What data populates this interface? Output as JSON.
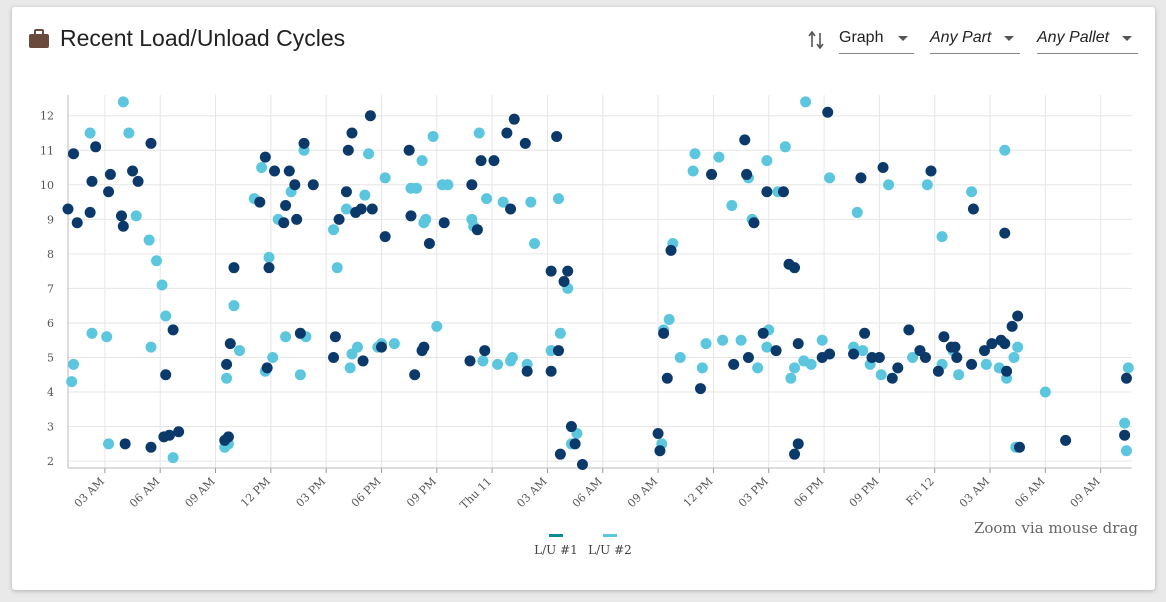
{
  "header": {
    "title": "Recent Load/Unload Cycles",
    "icon": "briefcase-icon",
    "sort_icon": "sort-arrows-icon",
    "view_select": "Graph",
    "part_select": "Any Part",
    "pallet_select": "Any Pallet"
  },
  "zoom_hint": "Zoom via mouse drag",
  "colors": {
    "lu1": "#0b3a6a",
    "lu2": "#5bc6de",
    "grid": "#e6e6e6"
  },
  "chart_data": {
    "type": "scatter",
    "title": "",
    "xlabel": "",
    "ylabel": "",
    "ylim": [
      1.8,
      12.6
    ],
    "yticks": [
      2,
      3,
      4,
      5,
      6,
      7,
      8,
      9,
      10,
      11,
      12
    ],
    "x_unit": "hours since Wed 10 00:00",
    "xlim": [
      1.0,
      58.7
    ],
    "xticks": [
      {
        "x": 3,
        "label": "03 AM"
      },
      {
        "x": 6,
        "label": "06 AM"
      },
      {
        "x": 9,
        "label": "09 AM"
      },
      {
        "x": 12,
        "label": "12 PM"
      },
      {
        "x": 15,
        "label": "03 PM"
      },
      {
        "x": 18,
        "label": "06 PM"
      },
      {
        "x": 21,
        "label": "09 PM"
      },
      {
        "x": 24,
        "label": "Thu 11"
      },
      {
        "x": 27,
        "label": "03 AM"
      },
      {
        "x": 30,
        "label": "06 AM"
      },
      {
        "x": 33,
        "label": "09 AM"
      },
      {
        "x": 36,
        "label": "12 PM"
      },
      {
        "x": 39,
        "label": "03 PM"
      },
      {
        "x": 42,
        "label": "06 PM"
      },
      {
        "x": 45,
        "label": "09 PM"
      },
      {
        "x": 48,
        "label": "Fri 12"
      },
      {
        "x": 51,
        "label": "03 AM"
      },
      {
        "x": 54,
        "label": "06 AM"
      },
      {
        "x": 57,
        "label": "09 AM"
      }
    ],
    "legend_position": "bottom-center",
    "series": [
      {
        "name": "L/U #1",
        "color": "#0b3a6a",
        "points": [
          [
            1.0,
            9.3
          ],
          [
            1.3,
            10.9
          ],
          [
            1.5,
            8.9
          ],
          [
            2.2,
            9.2
          ],
          [
            2.3,
            10.1
          ],
          [
            2.5,
            11.1
          ],
          [
            3.2,
            9.8
          ],
          [
            3.3,
            10.3
          ],
          [
            3.9,
            9.1
          ],
          [
            4.0,
            8.8
          ],
          [
            4.1,
            2.5
          ],
          [
            4.5,
            10.4
          ],
          [
            4.8,
            10.1
          ],
          [
            5.5,
            11.2
          ],
          [
            5.5,
            2.4
          ],
          [
            6.2,
            2.7
          ],
          [
            6.3,
            4.5
          ],
          [
            6.5,
            2.75
          ],
          [
            6.7,
            5.8
          ],
          [
            7.0,
            2.85
          ],
          [
            9.5,
            2.6
          ],
          [
            9.6,
            4.8
          ],
          [
            9.7,
            2.7
          ],
          [
            9.8,
            5.4
          ],
          [
            10.0,
            7.6
          ],
          [
            11.7,
            10.8
          ],
          [
            11.8,
            4.7
          ],
          [
            11.9,
            7.6
          ],
          [
            11.4,
            9.5
          ],
          [
            12.2,
            10.4
          ],
          [
            12.7,
            8.9
          ],
          [
            12.8,
            9.4
          ],
          [
            13.0,
            10.4
          ],
          [
            13.3,
            10.0
          ],
          [
            13.4,
            9.0
          ],
          [
            13.6,
            5.7
          ],
          [
            13.8,
            11.2
          ],
          [
            14.3,
            10.0
          ],
          [
            15.4,
            5.0
          ],
          [
            15.5,
            5.6
          ],
          [
            15.7,
            9.0
          ],
          [
            16.1,
            9.8
          ],
          [
            16.2,
            11.0
          ],
          [
            16.4,
            11.5
          ],
          [
            16.6,
            9.2
          ],
          [
            16.9,
            9.3
          ],
          [
            17.0,
            4.9
          ],
          [
            17.4,
            12.0
          ],
          [
            17.5,
            9.3
          ],
          [
            18.0,
            5.3
          ],
          [
            18.2,
            8.5
          ],
          [
            19.5,
            11.0
          ],
          [
            19.6,
            9.1
          ],
          [
            19.8,
            4.5
          ],
          [
            20.2,
            5.2
          ],
          [
            20.3,
            5.3
          ],
          [
            20.6,
            8.3
          ],
          [
            21.4,
            8.9
          ],
          [
            22.8,
            4.9
          ],
          [
            22.9,
            10.0
          ],
          [
            23.2,
            8.7
          ],
          [
            23.4,
            10.7
          ],
          [
            23.6,
            5.2
          ],
          [
            24.1,
            10.7
          ],
          [
            24.8,
            11.5
          ],
          [
            25.0,
            9.3
          ],
          [
            25.2,
            11.9
          ],
          [
            25.8,
            11.2
          ],
          [
            25.9,
            4.6
          ],
          [
            27.2,
            7.5
          ],
          [
            27.5,
            11.4
          ],
          [
            27.6,
            5.2
          ],
          [
            27.9,
            7.2
          ],
          [
            28.1,
            7.5
          ],
          [
            28.3,
            3.0
          ],
          [
            28.5,
            2.5
          ],
          [
            27.2,
            4.6
          ],
          [
            27.7,
            2.2
          ],
          [
            28.9,
            1.9
          ],
          [
            33.0,
            2.8
          ],
          [
            33.1,
            2.3
          ],
          [
            33.3,
            5.7
          ],
          [
            33.5,
            4.4
          ],
          [
            33.7,
            8.1
          ],
          [
            35.3,
            4.1
          ],
          [
            35.9,
            10.3
          ],
          [
            37.1,
            4.8
          ],
          [
            37.7,
            11.3
          ],
          [
            37.8,
            10.3
          ],
          [
            37.9,
            5.0
          ],
          [
            38.2,
            8.9
          ],
          [
            38.7,
            5.7
          ],
          [
            38.9,
            9.8
          ],
          [
            39.4,
            5.2
          ],
          [
            39.8,
            9.8
          ],
          [
            40.1,
            7.7
          ],
          [
            40.4,
            7.6
          ],
          [
            40.6,
            5.4
          ],
          [
            40.6,
            2.5
          ],
          [
            40.4,
            2.2
          ],
          [
            42.2,
            12.1
          ],
          [
            41.9,
            5.0
          ],
          [
            42.3,
            5.1
          ],
          [
            43.6,
            5.1
          ],
          [
            44.0,
            10.2
          ],
          [
            44.2,
            5.7
          ],
          [
            44.6,
            5.0
          ],
          [
            45.2,
            10.5
          ],
          [
            45.0,
            5.0
          ],
          [
            45.7,
            4.4
          ],
          [
            46.0,
            4.7
          ],
          [
            46.6,
            5.8
          ],
          [
            47.2,
            5.2
          ],
          [
            47.5,
            5.0
          ],
          [
            47.8,
            10.4
          ],
          [
            48.2,
            4.6
          ],
          [
            48.5,
            5.6
          ],
          [
            48.9,
            5.3
          ],
          [
            49.1,
            5.3
          ],
          [
            49.2,
            5.0
          ],
          [
            50.0,
            4.8
          ],
          [
            50.1,
            9.3
          ],
          [
            50.7,
            5.2
          ],
          [
            51.1,
            5.4
          ],
          [
            51.6,
            5.5
          ],
          [
            51.8,
            8.6
          ],
          [
            51.9,
            4.6
          ],
          [
            52.2,
            5.9
          ],
          [
            52.5,
            6.2
          ],
          [
            52.6,
            2.4
          ],
          [
            55.1,
            2.6
          ],
          [
            58.4,
            4.4
          ],
          [
            58.3,
            2.75
          ],
          [
            51.8,
            5.4
          ]
        ]
      },
      {
        "name": "L/U #2",
        "color": "#5bc6de",
        "points": [
          [
            1.2,
            4.3
          ],
          [
            1.3,
            4.8
          ],
          [
            2.2,
            11.5
          ],
          [
            2.3,
            5.7
          ],
          [
            3.1,
            5.6
          ],
          [
            3.2,
            2.5
          ],
          [
            4.0,
            12.4
          ],
          [
            4.3,
            11.5
          ],
          [
            4.7,
            9.1
          ],
          [
            5.4,
            8.4
          ],
          [
            5.5,
            5.3
          ],
          [
            5.8,
            7.8
          ],
          [
            6.1,
            7.1
          ],
          [
            6.3,
            6.2
          ],
          [
            6.7,
            2.1
          ],
          [
            9.5,
            2.4
          ],
          [
            9.6,
            4.4
          ],
          [
            9.7,
            2.5
          ],
          [
            10.0,
            6.5
          ],
          [
            10.3,
            5.2
          ],
          [
            11.1,
            9.6
          ],
          [
            11.5,
            10.5
          ],
          [
            11.7,
            4.6
          ],
          [
            11.9,
            7.9
          ],
          [
            12.1,
            5.0
          ],
          [
            12.4,
            9.0
          ],
          [
            12.8,
            5.6
          ],
          [
            13.1,
            9.8
          ],
          [
            13.6,
            4.5
          ],
          [
            13.8,
            11.0
          ],
          [
            13.9,
            5.6
          ],
          [
            15.4,
            8.7
          ],
          [
            15.6,
            7.6
          ],
          [
            16.1,
            9.3
          ],
          [
            16.3,
            4.7
          ],
          [
            16.4,
            5.1
          ],
          [
            16.7,
            5.3
          ],
          [
            17.1,
            9.7
          ],
          [
            17.3,
            10.9
          ],
          [
            17.8,
            5.3
          ],
          [
            18.0,
            5.4
          ],
          [
            18.2,
            10.2
          ],
          [
            18.7,
            5.4
          ],
          [
            19.6,
            9.9
          ],
          [
            19.9,
            9.9
          ],
          [
            20.2,
            10.7
          ],
          [
            20.3,
            8.9
          ],
          [
            20.4,
            9.0
          ],
          [
            20.8,
            11.4
          ],
          [
            21.0,
            5.9
          ],
          [
            21.3,
            10.0
          ],
          [
            21.6,
            10.0
          ],
          [
            22.9,
            9.0
          ],
          [
            23.0,
            8.8
          ],
          [
            23.3,
            11.5
          ],
          [
            23.5,
            4.9
          ],
          [
            23.7,
            9.6
          ],
          [
            24.3,
            4.8
          ],
          [
            24.6,
            9.5
          ],
          [
            25.0,
            4.9
          ],
          [
            25.1,
            5.0
          ],
          [
            25.9,
            4.8
          ],
          [
            26.1,
            9.5
          ],
          [
            26.3,
            8.3
          ],
          [
            27.2,
            5.2
          ],
          [
            27.6,
            9.6
          ],
          [
            27.7,
            5.7
          ],
          [
            28.1,
            7.0
          ],
          [
            28.3,
            2.5
          ],
          [
            28.6,
            2.8
          ],
          [
            33.2,
            2.5
          ],
          [
            33.3,
            5.8
          ],
          [
            33.6,
            6.1
          ],
          [
            33.8,
            8.3
          ],
          [
            34.2,
            5.0
          ],
          [
            34.9,
            10.4
          ],
          [
            35.0,
            10.9
          ],
          [
            35.4,
            4.7
          ],
          [
            35.6,
            5.4
          ],
          [
            36.3,
            10.8
          ],
          [
            36.5,
            5.5
          ],
          [
            37.0,
            9.4
          ],
          [
            37.5,
            5.5
          ],
          [
            37.9,
            10.2
          ],
          [
            38.1,
            9.0
          ],
          [
            38.4,
            4.7
          ],
          [
            38.9,
            10.7
          ],
          [
            39.0,
            5.8
          ],
          [
            39.5,
            9.8
          ],
          [
            39.9,
            11.1
          ],
          [
            40.2,
            4.4
          ],
          [
            40.4,
            4.7
          ],
          [
            40.9,
            4.9
          ],
          [
            41.0,
            12.4
          ],
          [
            41.3,
            4.8
          ],
          [
            41.9,
            5.5
          ],
          [
            42.3,
            10.2
          ],
          [
            43.6,
            5.3
          ],
          [
            43.8,
            9.2
          ],
          [
            44.5,
            4.8
          ],
          [
            45.1,
            4.5
          ],
          [
            45.5,
            10.0
          ],
          [
            46.8,
            5.0
          ],
          [
            47.6,
            10.0
          ],
          [
            48.4,
            4.8
          ],
          [
            48.4,
            8.5
          ],
          [
            49.0,
            5.2
          ],
          [
            49.3,
            4.5
          ],
          [
            50.0,
            9.8
          ],
          [
            50.8,
            4.8
          ],
          [
            51.5,
            4.7
          ],
          [
            51.8,
            11.0
          ],
          [
            51.9,
            4.4
          ],
          [
            52.3,
            5.0
          ],
          [
            52.5,
            5.3
          ],
          [
            52.4,
            2.4
          ],
          [
            54.0,
            4.0
          ],
          [
            58.3,
            3.1
          ],
          [
            58.4,
            2.3
          ],
          [
            58.5,
            4.7
          ],
          [
            38.9,
            5.3
          ],
          [
            44.1,
            5.2
          ]
        ]
      }
    ]
  }
}
